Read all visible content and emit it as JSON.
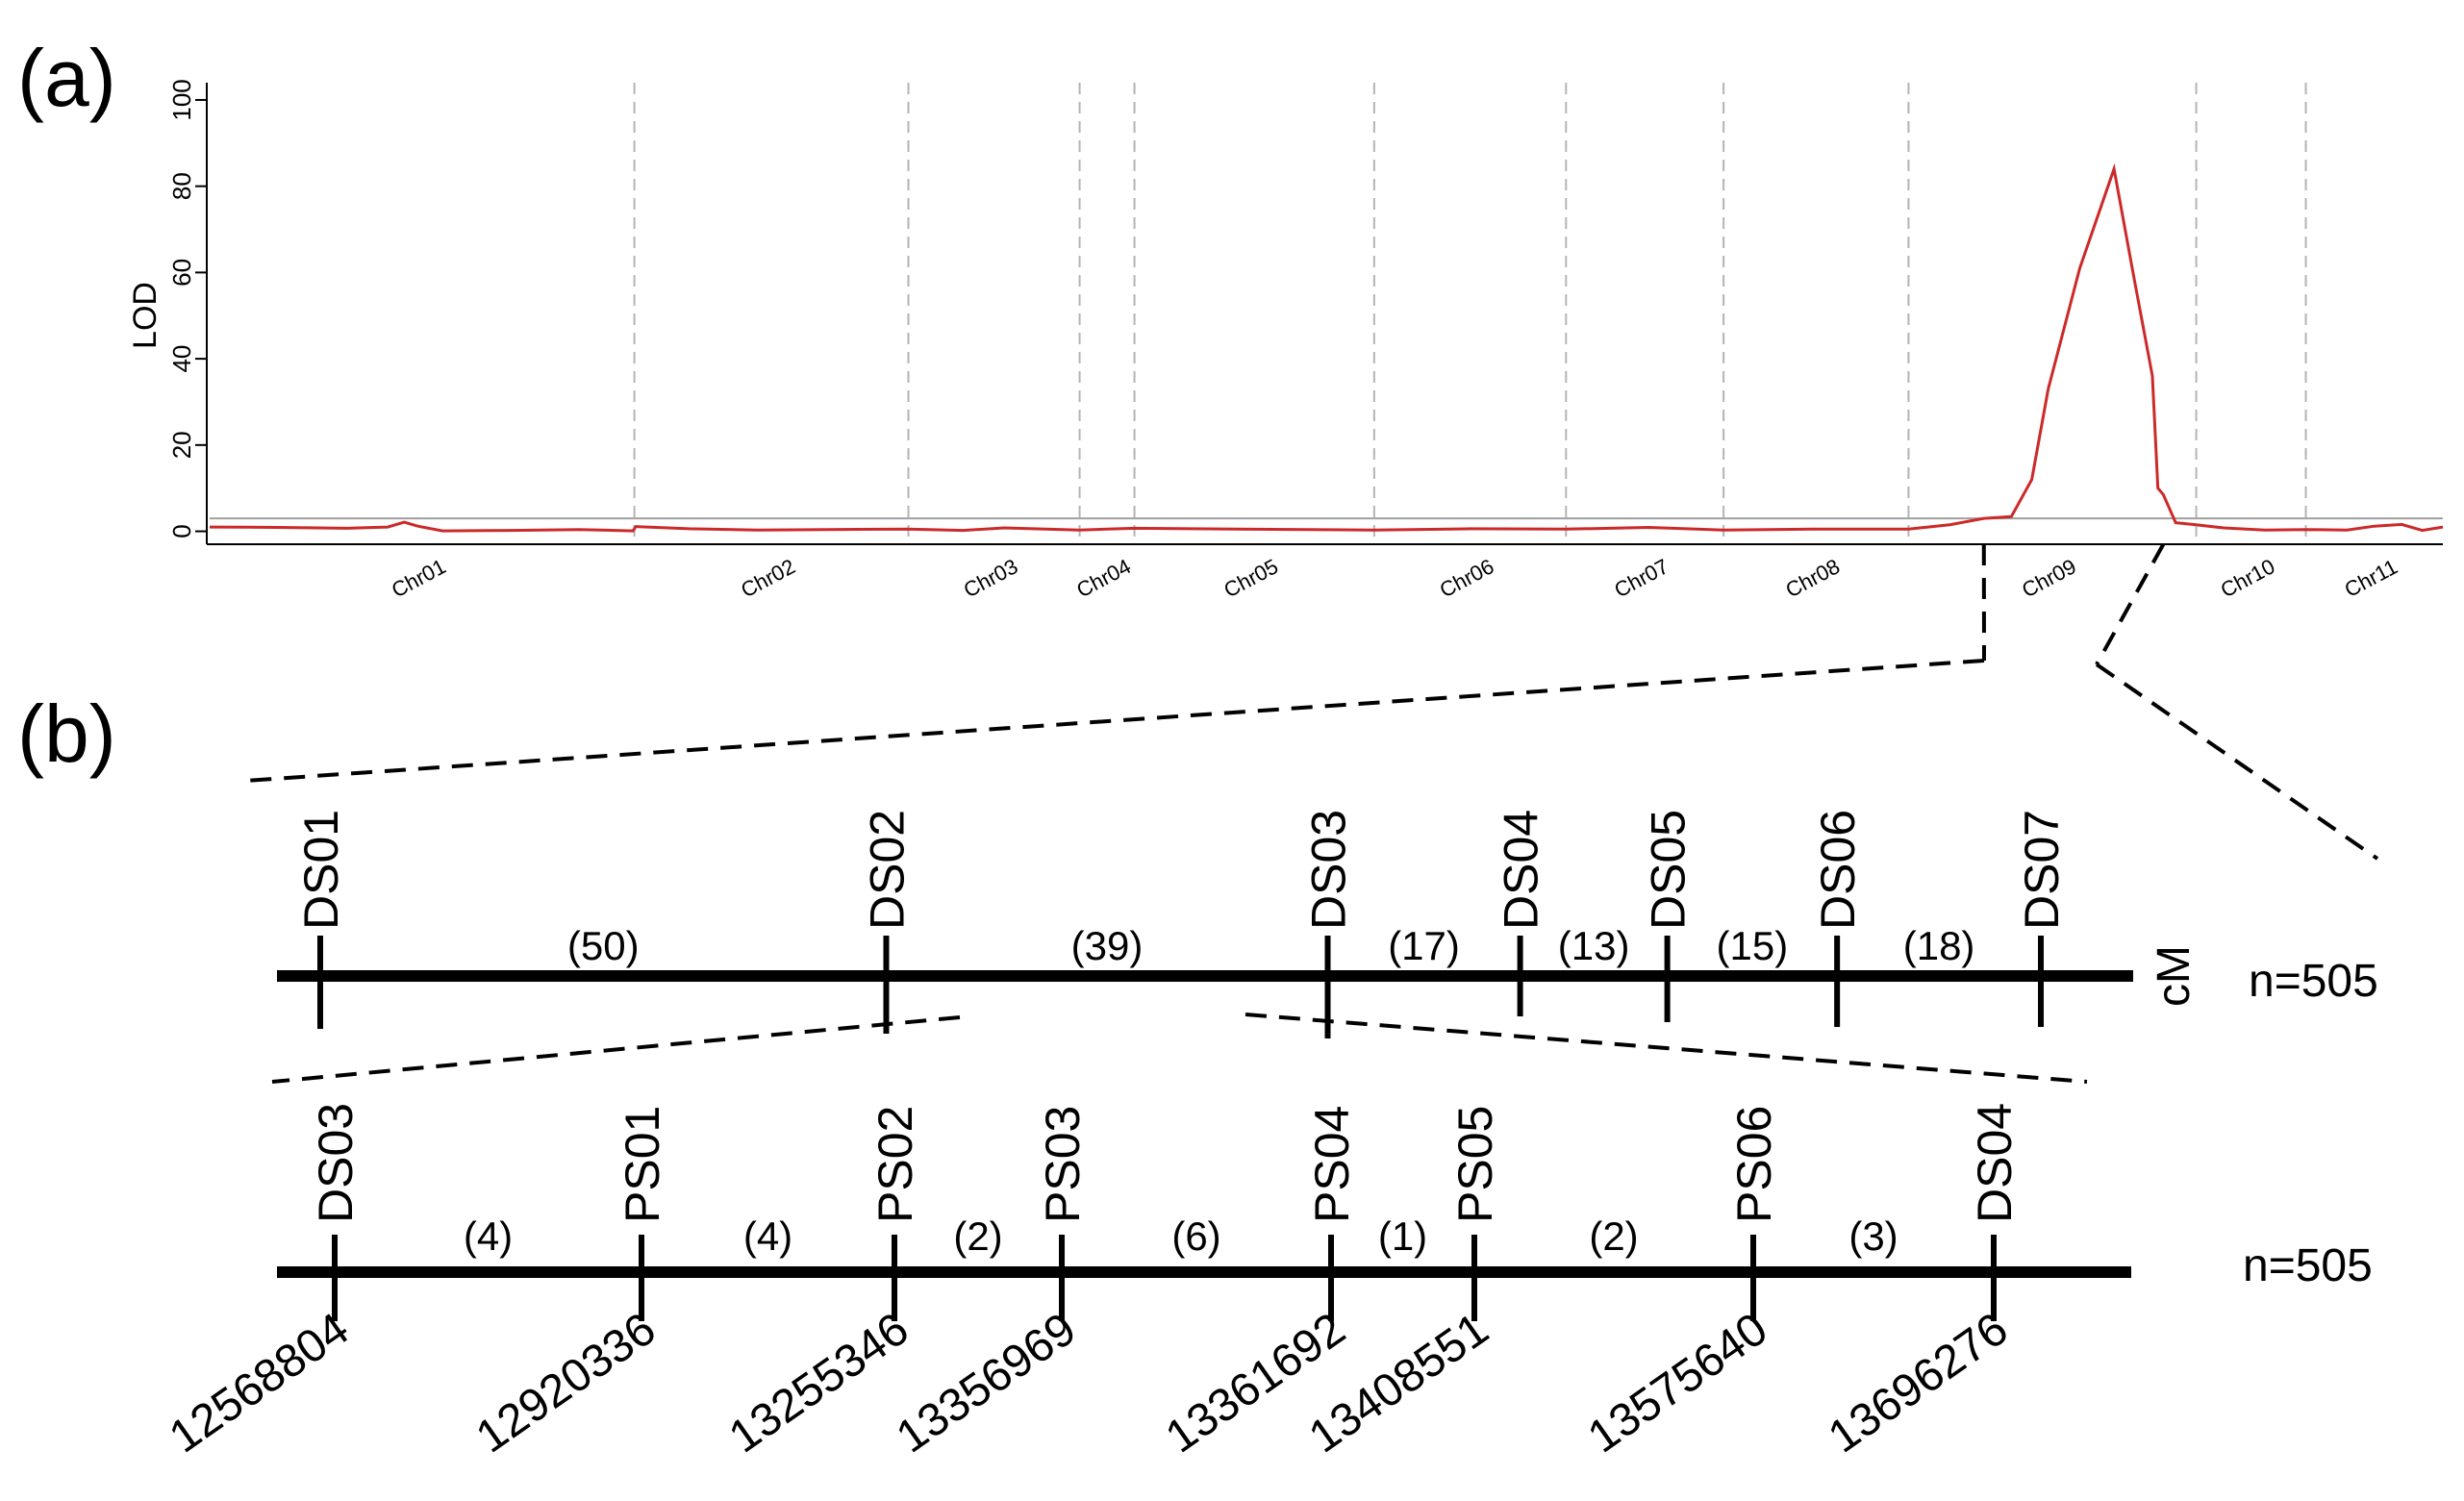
{
  "panel_a": {
    "label": "(a)"
  },
  "panel_b": {
    "label": "(b)"
  },
  "colors": {
    "lod_line": "#cc2a2a",
    "threshold": "#a0a0a0",
    "divider": "#b4b4b4",
    "map_line": "#000000"
  },
  "chart_data": {
    "type": "line",
    "ylabel": "LOD",
    "xlabel": "",
    "ylim": [
      -3,
      104
    ],
    "yticks": [
      0,
      20,
      40,
      60,
      80,
      100
    ],
    "threshold": 3,
    "grid": false,
    "chromosomes": [
      {
        "name": "Chr01",
        "start": 0,
        "end": 31
      },
      {
        "name": "Chr02",
        "start": 31,
        "end": 51
      },
      {
        "name": "Chr03",
        "start": 51,
        "end": 63.5
      },
      {
        "name": "Chr04",
        "start": 63.5,
        "end": 67.5
      },
      {
        "name": "Chr05",
        "start": 67.5,
        "end": 85
      },
      {
        "name": "Chr06",
        "start": 85,
        "end": 99
      },
      {
        "name": "Chr07",
        "start": 99,
        "end": 110.5
      },
      {
        "name": "Chr08",
        "start": 110.5,
        "end": 124
      },
      {
        "name": "Chr09",
        "start": 124,
        "end": 145
      },
      {
        "name": "Chr10",
        "start": 145,
        "end": 153
      },
      {
        "name": "Chr11",
        "start": 153,
        "end": 163
      }
    ],
    "series": [
      {
        "x": [
          0,
          5,
          10,
          13,
          14.2,
          15.2,
          17,
          22,
          27,
          30.9,
          31.1,
          35,
          40,
          45,
          51,
          55,
          58,
          63.5,
          67.5,
          75,
          85,
          92,
          99,
          105,
          110.5,
          117,
          124,
          127,
          129.5,
          131.5,
          133,
          134.2,
          136.5,
          139,
          140.5,
          141.8,
          142.2,
          142.6,
          143.5,
          145,
          147,
          150,
          153,
          156,
          158,
          160,
          161.5,
          163
        ],
        "y": [
          1,
          0.9,
          0.7,
          1,
          2.1,
          1.2,
          0.1,
          0.2,
          0.4,
          0.1,
          1.1,
          0.6,
          0.3,
          0.4,
          0.5,
          0.2,
          0.8,
          0.3,
          0.7,
          0.5,
          0.3,
          0.6,
          0.5,
          0.9,
          0.3,
          0.5,
          0.5,
          1.5,
          3,
          3.4,
          12,
          33,
          61,
          84,
          58,
          36,
          10,
          8.5,
          2,
          1.5,
          0.8,
          0.3,
          0.4,
          0.3,
          1.2,
          1.6,
          0.2,
          1
        ]
      }
    ]
  },
  "map_top": {
    "markers": [
      {
        "name": "DS01",
        "pos": 0
      },
      {
        "name": "DS02",
        "pos": 50
      },
      {
        "name": "DS03",
        "pos": 89
      },
      {
        "name": "DS04",
        "pos": 106
      },
      {
        "name": "DS05",
        "pos": 119
      },
      {
        "name": "DS06",
        "pos": 134
      },
      {
        "name": "DS07",
        "pos": 152
      }
    ],
    "intervals": [
      "(50)",
      "(39)",
      "(17)",
      "(13)",
      "(15)",
      "(18)"
    ],
    "unit": "cM",
    "n": "n=505"
  },
  "map_bottom": {
    "markers": [
      {
        "name": "DS03",
        "position": "12568804"
      },
      {
        "name": "PS01",
        "position": "12920336"
      },
      {
        "name": "PS02",
        "position": "13255346"
      },
      {
        "name": "PS03",
        "position": "13356969"
      },
      {
        "name": "PS04",
        "position": "13361692"
      },
      {
        "name": "PS05",
        "position": "13408551"
      },
      {
        "name": "PS06",
        "position": "13575640"
      },
      {
        "name": "DS04",
        "position": "13696276"
      }
    ],
    "intervals": [
      "(4)",
      "(4)",
      "(2)",
      "(6)",
      "(1)",
      "(2)",
      "(3)"
    ],
    "n": "n=505"
  }
}
